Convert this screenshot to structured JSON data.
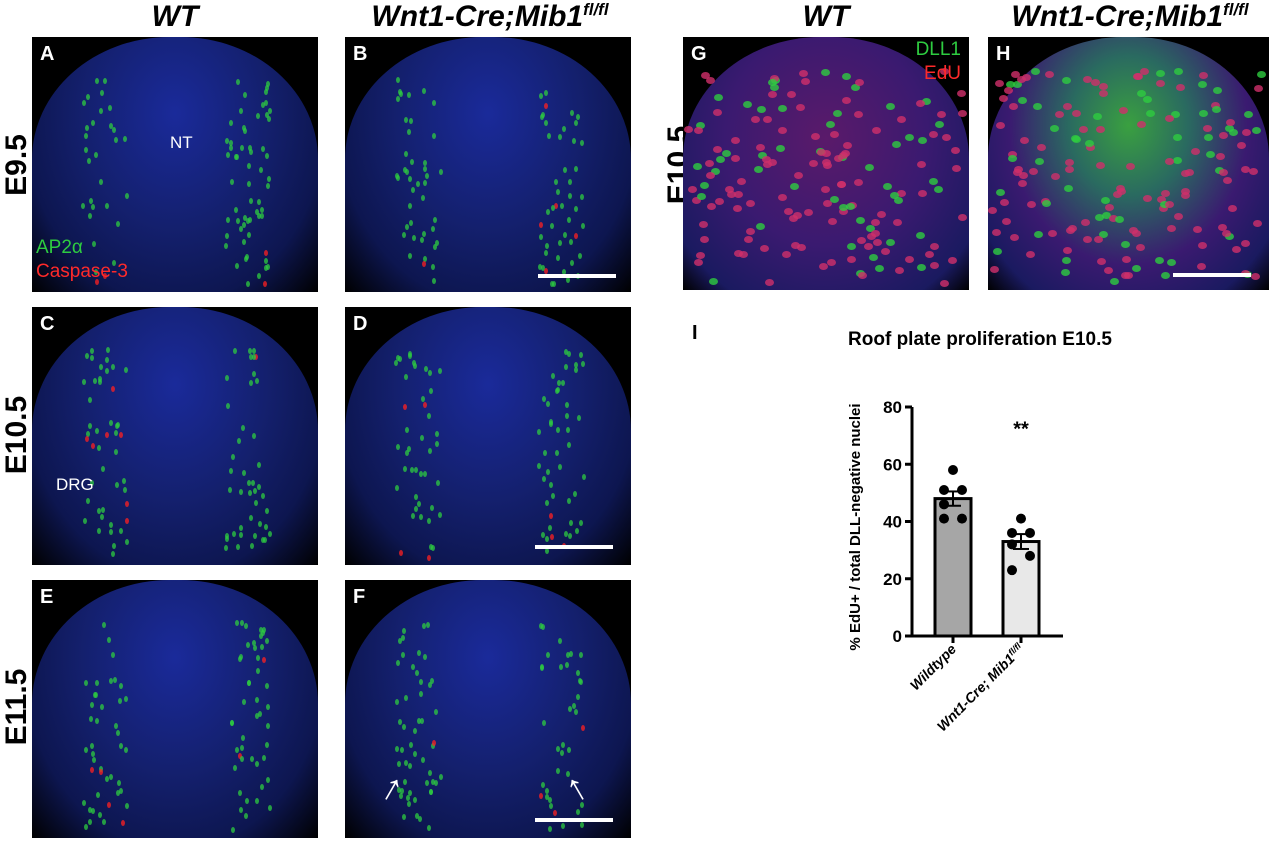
{
  "columns": {
    "wt": "WT",
    "mutant_base": "Wnt1-Cre;Mib1",
    "mutant_sup": "fl/fl"
  },
  "rows": [
    "E9.5",
    "E10.5",
    "E11.5"
  ],
  "row_g": "E10.5",
  "panels": {
    "A": "A",
    "B": "B",
    "C": "C",
    "D": "D",
    "E": "E",
    "F": "F",
    "G": "G",
    "H": "H",
    "I": "I"
  },
  "annotations": {
    "nt": "NT",
    "drg": "DRG"
  },
  "legend_left": {
    "green": "AP2α",
    "red": "Caspase-3"
  },
  "legend_right": {
    "green": "DLL1",
    "red": "EdU"
  },
  "colors": {
    "green": "#2ecc40",
    "red": "#ff2020",
    "blue": "#1a2a9a",
    "wt_bar": "#a6a6a6",
    "mut_bar": "#e8e8e8"
  },
  "chart_data": {
    "type": "bar",
    "title": "Roof plate proliferation E10.5",
    "ylabel": "% EdU+ / total DLL-negative nuclei",
    "xlabel": "",
    "ylim": [
      0,
      80
    ],
    "yticks": [
      0,
      20,
      40,
      60,
      80
    ],
    "categories": [
      "Wildtype",
      "Wnt1-Cre; Mib1"
    ],
    "category_sup": [
      "",
      "fl/fl"
    ],
    "values": [
      48,
      33
    ],
    "errors": [
      2.5,
      2.6
    ],
    "points": [
      [
        58,
        51,
        51,
        46,
        41,
        41
      ],
      [
        41,
        36,
        36,
        32,
        28,
        23
      ]
    ],
    "significance": "**",
    "grid": false
  }
}
